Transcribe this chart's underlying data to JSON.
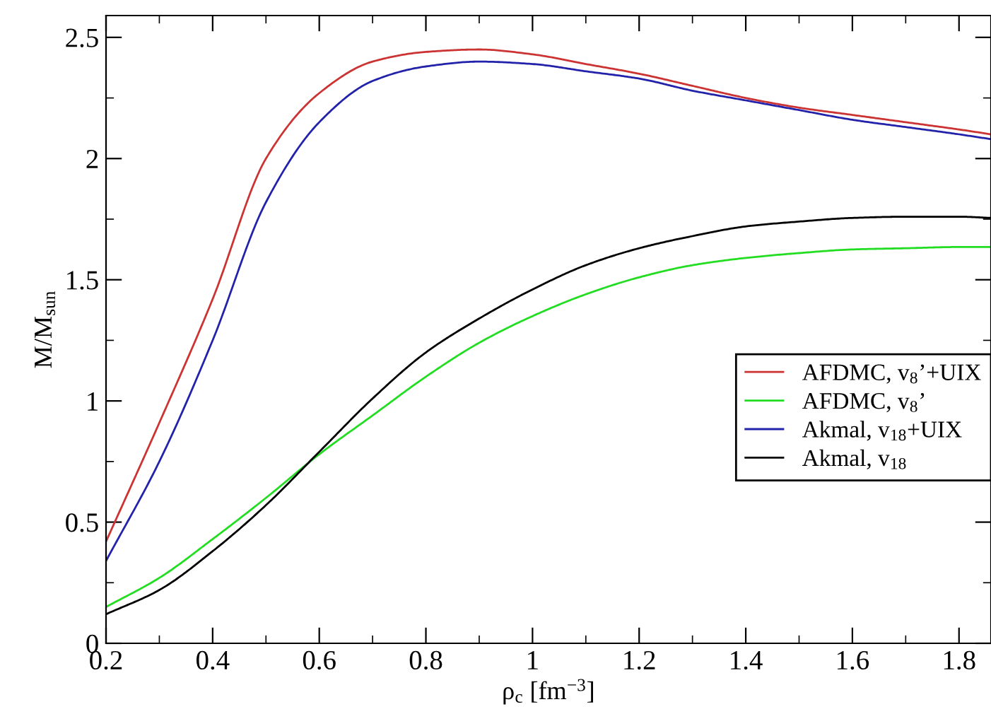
{
  "chart_data": {
    "type": "line",
    "xlabel": "ρ$_{c}$ [fm$^{−3}$]",
    "ylabel": "M/M$_{sun}$",
    "x": [
      0.2,
      0.3,
      0.4,
      0.5,
      0.6,
      0.7,
      0.8,
      0.9,
      1.0,
      1.1,
      1.2,
      1.3,
      1.4,
      1.5,
      1.6,
      1.7,
      1.8,
      1.86
    ],
    "series": [
      {
        "name": "AFDMC, v$_{8}$’+UIX",
        "color": "#cc3333",
        "values": [
          0.42,
          0.91,
          1.42,
          2.0,
          2.27,
          2.4,
          2.44,
          2.45,
          2.43,
          2.39,
          2.35,
          2.3,
          2.25,
          2.21,
          2.18,
          2.15,
          2.12,
          2.1
        ]
      },
      {
        "name": "AFDMC, v$_{8}$’",
        "color": "#22dd22",
        "values": [
          0.15,
          0.27,
          0.43,
          0.6,
          0.78,
          0.94,
          1.1,
          1.24,
          1.35,
          1.44,
          1.51,
          1.56,
          1.59,
          1.61,
          1.625,
          1.63,
          1.635,
          1.635
        ]
      },
      {
        "name": "Akmal, v$_{18}$+UIX",
        "color": "#2222aa",
        "values": [
          0.34,
          0.75,
          1.25,
          1.82,
          2.15,
          2.32,
          2.38,
          2.4,
          2.39,
          2.36,
          2.33,
          2.28,
          2.24,
          2.2,
          2.16,
          2.13,
          2.1,
          2.08
        ]
      },
      {
        "name": "Akmal, v$_{18}$",
        "color": "#000000",
        "values": [
          0.12,
          0.22,
          0.38,
          0.57,
          0.79,
          1.01,
          1.2,
          1.34,
          1.46,
          1.56,
          1.63,
          1.68,
          1.72,
          1.74,
          1.755,
          1.76,
          1.76,
          1.755
        ]
      }
    ],
    "xlim": [
      0.2,
      1.86
    ],
    "ylim": [
      0,
      2.59
    ],
    "xticks": [
      0.2,
      {
        "value": 0.3,
        "label": null
      },
      0.4,
      {
        "value": 0.5,
        "label": null
      },
      0.6,
      {
        "value": 0.7,
        "label": null
      },
      0.8,
      {
        "value": 0.9,
        "label": null
      },
      {
        "value": 1.0,
        "label": "1"
      },
      {
        "value": 1.1,
        "label": null
      },
      1.2,
      {
        "value": 1.3,
        "label": null
      },
      1.4,
      {
        "value": 1.5,
        "label": null
      },
      1.6,
      {
        "value": 1.7,
        "label": null
      },
      1.8
    ],
    "yticks": [
      0,
      {
        "value": 0.25,
        "label": null
      },
      0.5,
      {
        "value": 0.75,
        "label": null
      },
      1,
      {
        "value": 1.25,
        "label": null
      },
      1.5,
      {
        "value": 1.75,
        "label": null
      },
      2,
      {
        "value": 2.25,
        "label": null
      },
      2.5
    ],
    "grid": false,
    "legend": "right",
    "marker": "none",
    "line_style": "solid"
  }
}
